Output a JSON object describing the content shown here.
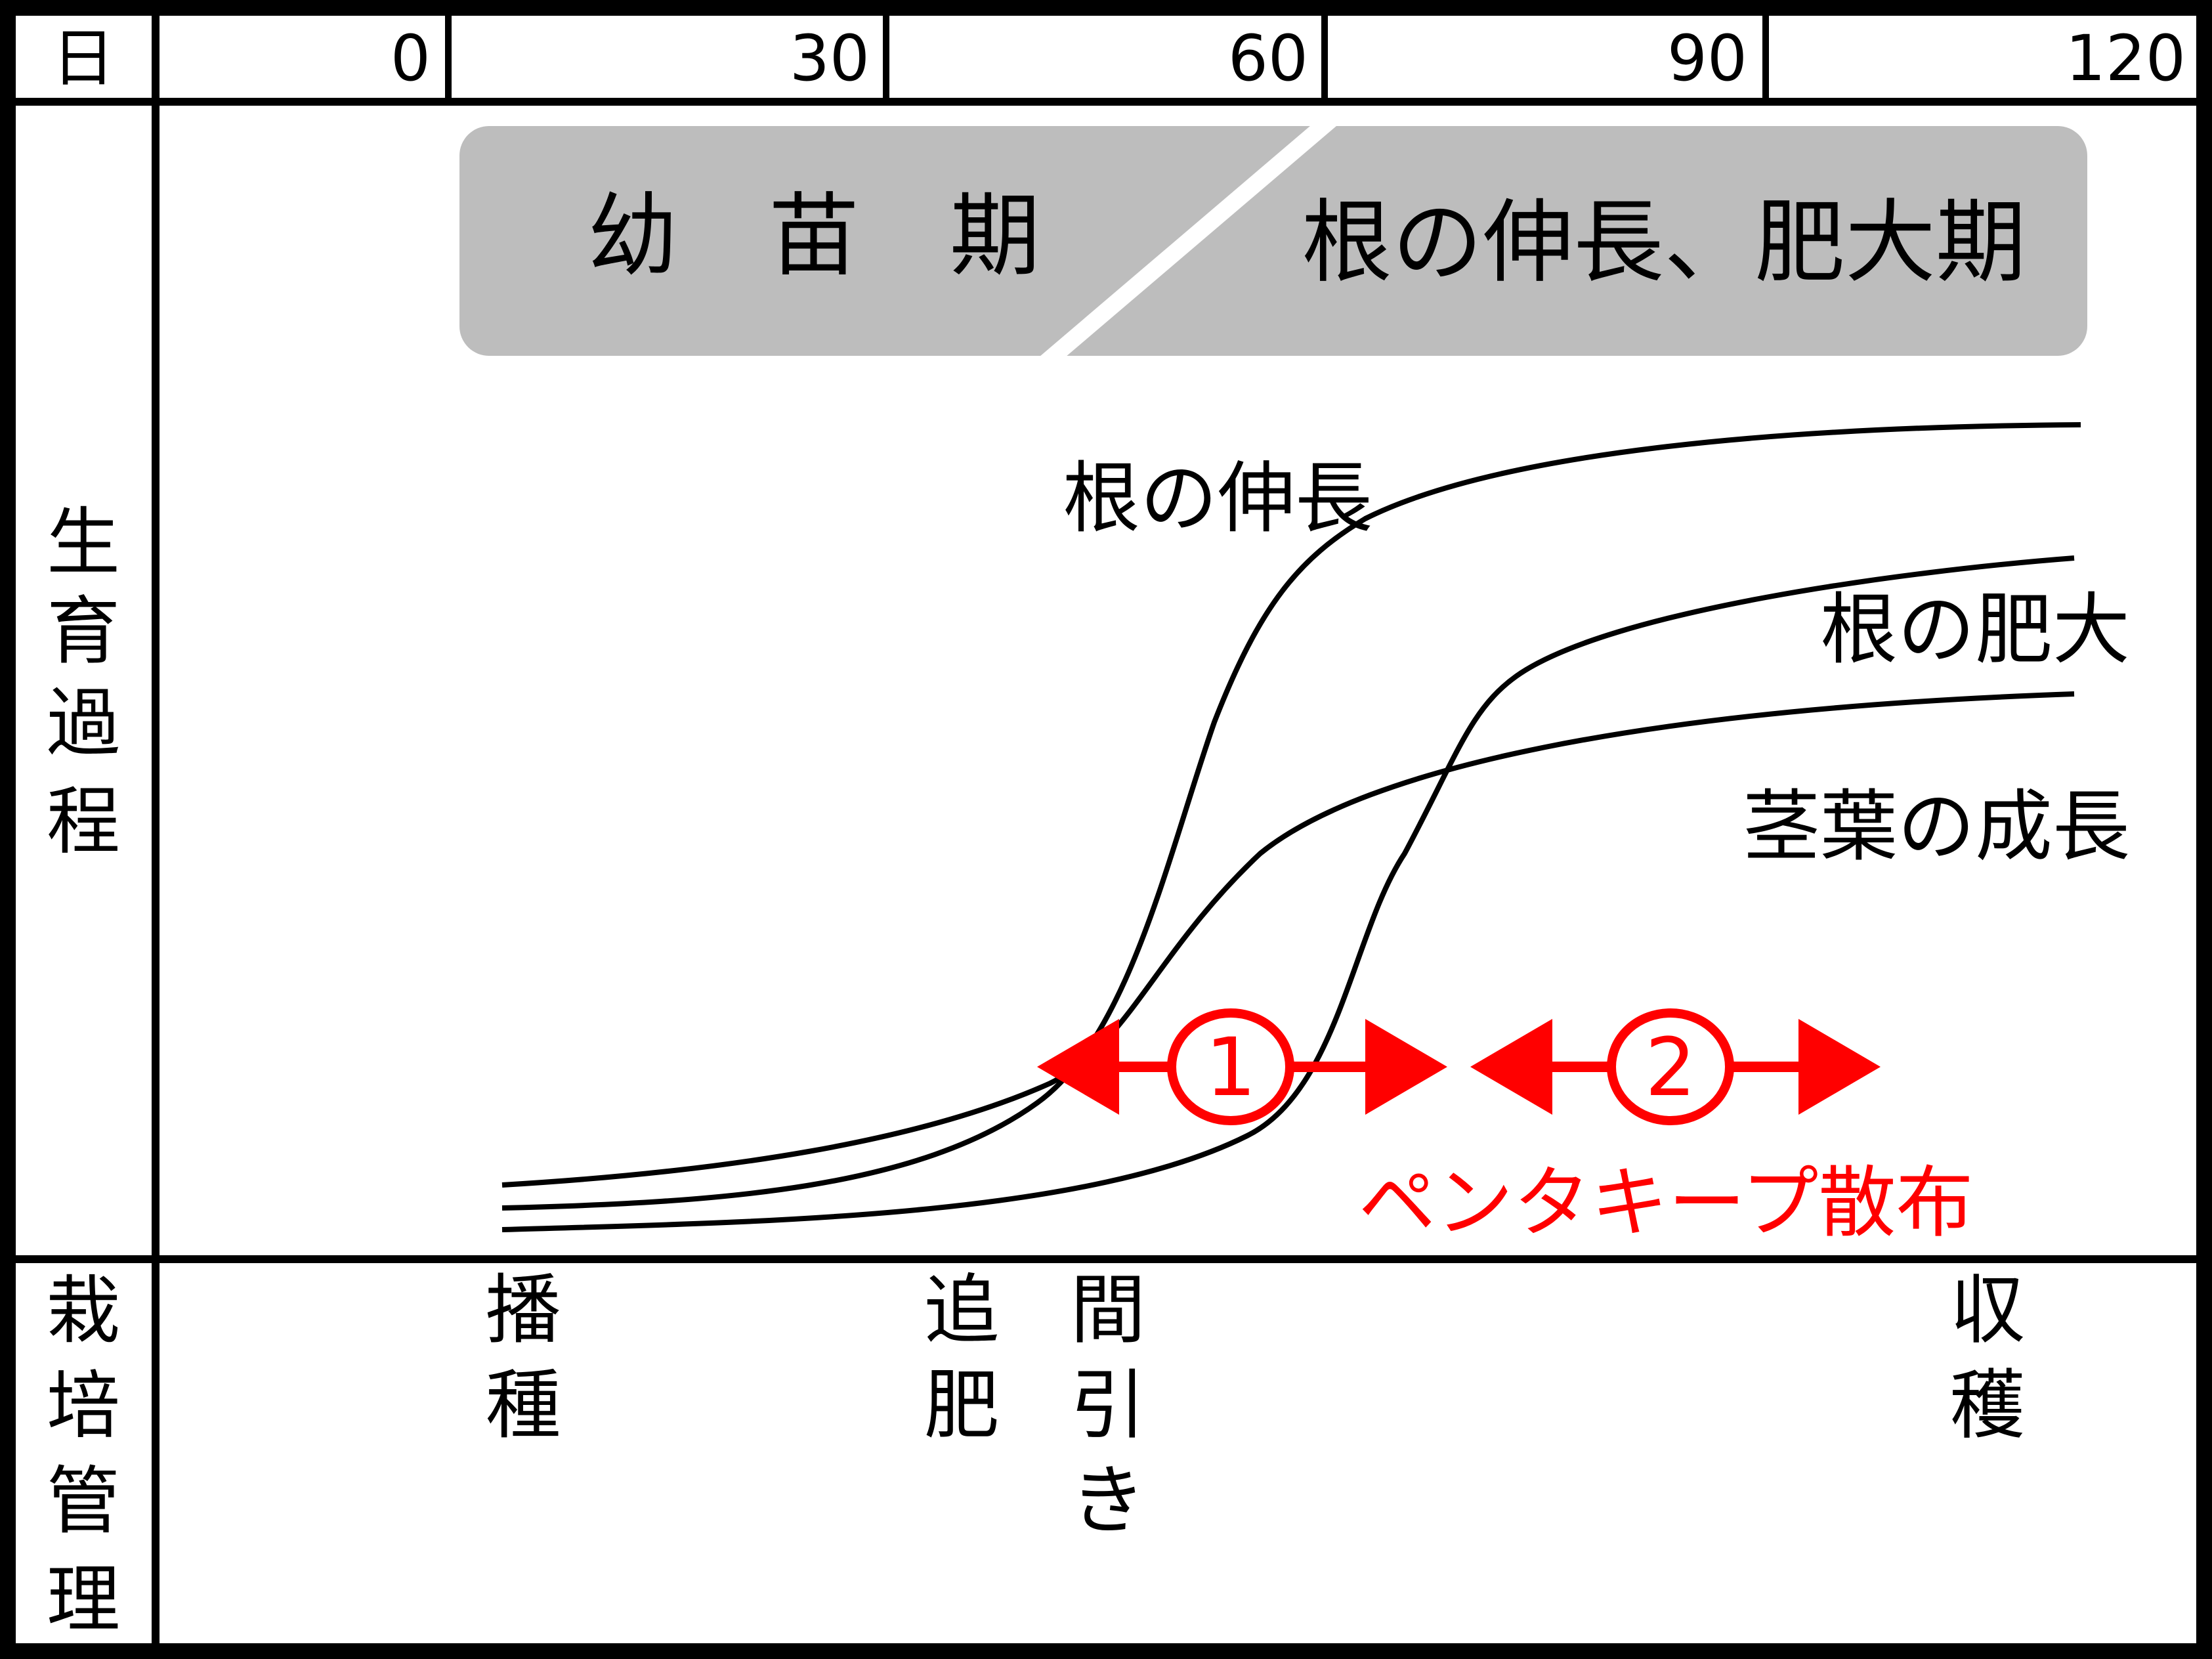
{
  "header": {
    "day_label": "日",
    "ticks": [
      "0",
      "30",
      "60",
      "90",
      "120"
    ]
  },
  "growth_section": {
    "row_label": [
      "生",
      "育",
      "過",
      "程"
    ],
    "stage_banner": {
      "seedling_stage": "幼　苗　期",
      "enlargement_stage": "根の伸長、肥大期"
    },
    "curve_labels": {
      "root_elongation": "根の伸長",
      "root_enlargement": "根の肥大",
      "foliage_growth": "茎葉の成長"
    },
    "spray": {
      "period_1": "1",
      "period_2": "2",
      "label": "ペンタキープ散布"
    }
  },
  "cultivation_section": {
    "row_label": [
      "栽",
      "培",
      "管",
      "理"
    ],
    "tasks": {
      "sowing": [
        "播",
        "種"
      ],
      "top_dressing": [
        "追",
        "肥"
      ],
      "thinning": [
        "間",
        "引",
        "き"
      ],
      "harvest": [
        "収",
        "穫"
      ]
    }
  },
  "colors": {
    "line": "#000000",
    "banner": "#bdbdbd",
    "accent": "#ff0000"
  }
}
